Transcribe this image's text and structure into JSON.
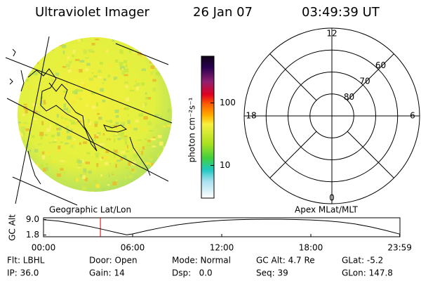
{
  "header": {
    "title": "Ultraviolet Imager",
    "date": "26 Jan 07",
    "time": "03:49:39 UT"
  },
  "colorbar": {
    "label": "photon cm⁻²s⁻¹",
    "log": true,
    "lim": [
      3,
      560
    ],
    "ticks": [
      10,
      100
    ]
  },
  "polar": {
    "rlim": [
      90,
      50
    ],
    "rings": [
      80,
      70,
      60
    ],
    "hours": [
      12,
      18,
      6,
      0
    ]
  },
  "altitude": {
    "left_label": "Geographic Lat/Lon",
    "right_label": "Apex MLat/MLT",
    "ylabel": "GC Alt",
    "xlim": [
      0,
      24
    ],
    "ylim": [
      1.0,
      9.8
    ],
    "xticks": [
      {
        "value": 0,
        "label": "00:00"
      },
      {
        "value": 6,
        "label": "06:00"
      },
      {
        "value": 12,
        "label": "12:00"
      },
      {
        "value": 18,
        "label": "18:00"
      },
      {
        "value": 23.983,
        "label": "23:59"
      }
    ],
    "yticks": [
      {
        "value": 9,
        "label": "9.0"
      },
      1.8
    ],
    "x": [
      0,
      1,
      2,
      3,
      4,
      5,
      5.6,
      6,
      7,
      8,
      9,
      10,
      11,
      12,
      13,
      14,
      15,
      16,
      17,
      18,
      19,
      20,
      21,
      22,
      23,
      24
    ],
    "values": [
      8.9,
      8.3,
      7.2,
      5.9,
      4.4,
      2.8,
      1.9,
      2.3,
      3.9,
      5.3,
      6.5,
      7.4,
      8.1,
      8.6,
      8.9,
      9.05,
      9.1,
      9.1,
      9.0,
      8.8,
      8.4,
      7.8,
      6.9,
      5.6,
      4.0,
      2.2
    ],
    "marker": 3.83
  },
  "status": [
    [
      "Flt: LBHL",
      "Door: Open",
      "Mode: Normal",
      "GC Alt: 4.7 Re",
      "GLat: -5.2"
    ],
    [
      "IP: 36.0",
      "Gain: 14",
      "Dsp:   0.0",
      "Seq: 39",
      "GLon: 147.8"
    ]
  ]
}
